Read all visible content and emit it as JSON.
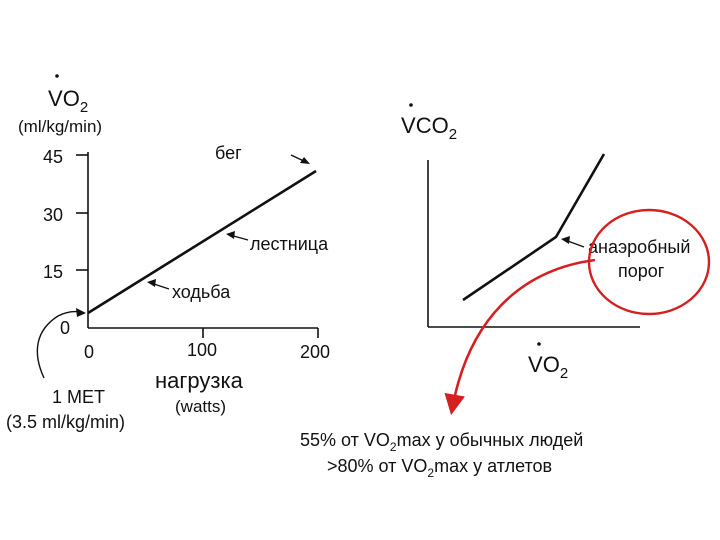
{
  "left_chart": {
    "y_label": {
      "base": "V",
      "main": "O",
      "sub": "2"
    },
    "y_unit": "(ml/kg/min)",
    "y_ticks": [
      "45",
      "30",
      "15",
      "0"
    ],
    "x_ticks": [
      "0",
      "100",
      "200"
    ],
    "x_label": "нагрузка",
    "x_unit": "(watts)",
    "labels": {
      "run": "бег",
      "stairs": "лестница",
      "walk": "ходьба"
    },
    "met_note": [
      "1 MET",
      "(3.5 ml/kg/min)"
    ]
  },
  "right_chart": {
    "y_label": {
      "base": "V",
      "main": "CO",
      "sub": "2"
    },
    "x_label": {
      "base": "V",
      "main": "O",
      "sub": "2"
    },
    "threshold_label": [
      "анаэробный",
      "порог"
    ],
    "caption_lines": [
      {
        "pre": "55% от VO",
        "sub": "2",
        "post": "max у обычных людей"
      },
      {
        "pre": ">80% от VO",
        "sub": "2",
        "post": "max у атлетов"
      }
    ]
  },
  "colors": {
    "ink": "#111111",
    "accent": "#d42020"
  }
}
